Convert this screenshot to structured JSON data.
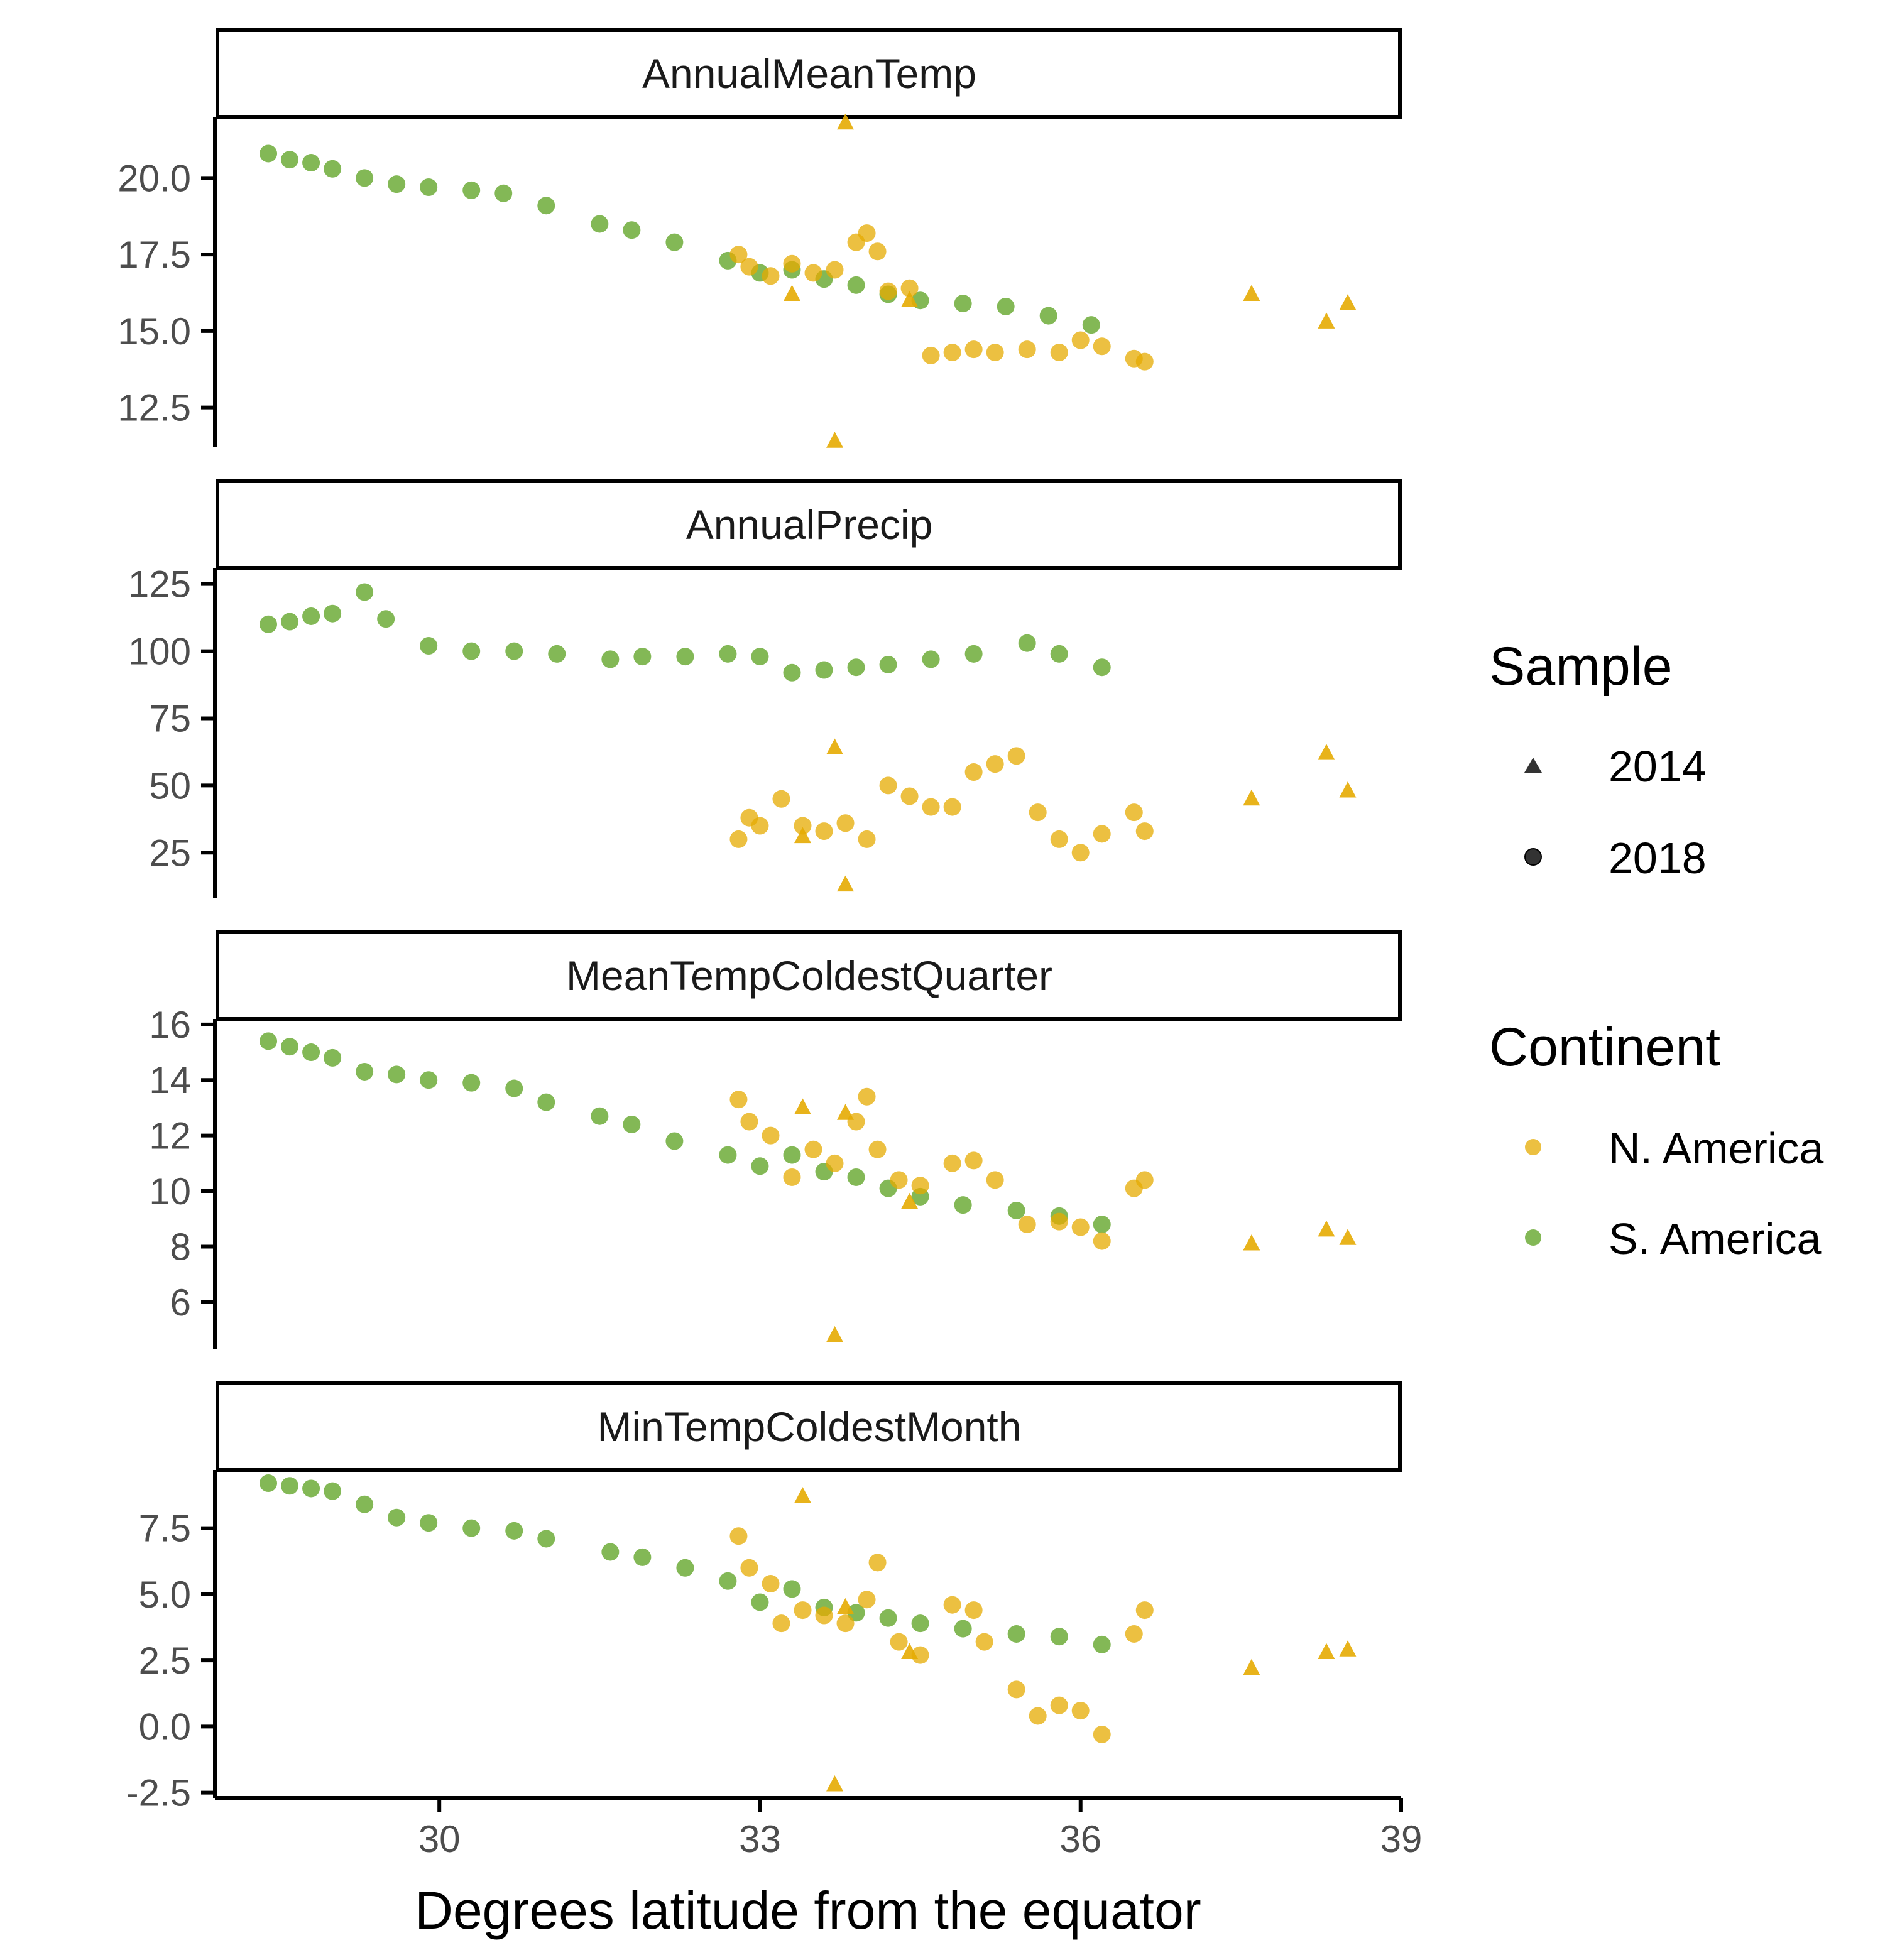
{
  "chart_data": {
    "type": "scatter",
    "xlabel": "Degrees latitude from the equator",
    "xlim": [
      27.9,
      39.0
    ],
    "x_ticks": [
      30,
      33,
      36,
      39
    ],
    "x_tick_labels": [
      "30",
      "33",
      "36",
      "39"
    ],
    "colors": {
      "N. America": "#E6AB02",
      "S. America": "#5AA01E"
    },
    "legend": {
      "placement": "right",
      "sample": {
        "title": "Sample",
        "items": [
          {
            "label": "2014",
            "shape": "triangle"
          },
          {
            "label": "2018",
            "shape": "circle"
          }
        ]
      },
      "continent": {
        "title": "Continent",
        "items": [
          {
            "label": "N. America",
            "color": "#E6AB02"
          },
          {
            "label": "S. America",
            "color": "#5AA01E"
          }
        ]
      }
    },
    "panels": [
      {
        "title": "AnnualMeanTemp",
        "ylim": [
          11.2,
          22.0
        ],
        "y_ticks": [
          12.5,
          15.0,
          17.5,
          20.0
        ],
        "y_tick_labels": [
          "12.5",
          "15.0",
          "17.5",
          "20.0"
        ],
        "series": [
          {
            "name": "S. America",
            "sample": "2018",
            "x": [
              28.4,
              28.6,
              28.8,
              29.0,
              29.3,
              29.6,
              29.9,
              30.3,
              30.6,
              31.0,
              31.5,
              31.8,
              32.2,
              32.7,
              33.0,
              33.3,
              33.6,
              33.9,
              34.2,
              34.5,
              34.9,
              35.3,
              35.7,
              36.1
            ],
            "y": [
              20.8,
              20.6,
              20.5,
              20.3,
              20.0,
              19.8,
              19.7,
              19.6,
              19.5,
              19.1,
              18.5,
              18.3,
              17.9,
              17.3,
              16.9,
              17.0,
              16.7,
              16.5,
              16.2,
              16.0,
              15.9,
              15.8,
              15.5,
              15.2
            ]
          },
          {
            "name": "N. America",
            "sample": "2018",
            "x": [
              32.8,
              32.9,
              33.1,
              33.3,
              33.5,
              33.7,
              33.9,
              34.0,
              34.1,
              34.2,
              34.4,
              34.6,
              34.8,
              35.0,
              35.2,
              35.5,
              35.8,
              36.0,
              36.2,
              36.5,
              36.6
            ],
            "y": [
              17.5,
              17.1,
              16.8,
              17.2,
              16.9,
              17.0,
              17.9,
              18.2,
              17.6,
              16.3,
              16.4,
              14.2,
              14.3,
              14.4,
              14.3,
              14.4,
              14.3,
              14.7,
              14.5,
              14.1,
              14.0
            ]
          },
          {
            "name": "N. America",
            "sample": "2014",
            "x": [
              33.3,
              33.7,
              33.8,
              34.4,
              37.6,
              38.3,
              38.5
            ],
            "y": [
              16.2,
              11.4,
              21.8,
              16.0,
              16.2,
              15.3,
              15.9
            ]
          }
        ]
      },
      {
        "title": "AnnualPrecip",
        "ylim": [
          8,
          131
        ],
        "y_ticks": [
          25,
          50,
          75,
          100,
          125
        ],
        "y_tick_labels": [
          "25",
          "50",
          "75",
          "100",
          "125"
        ],
        "series": [
          {
            "name": "S. America",
            "sample": "2018",
            "x": [
              28.4,
              28.6,
              28.8,
              29.0,
              29.3,
              29.5,
              29.9,
              30.3,
              30.7,
              31.1,
              31.6,
              31.9,
              32.3,
              32.7,
              33.0,
              33.3,
              33.6,
              33.9,
              34.2,
              34.6,
              35.0,
              35.5,
              35.8,
              36.2
            ],
            "y": [
              110,
              111,
              113,
              114,
              122,
              112,
              102,
              100,
              100,
              99,
              97,
              98,
              98,
              99,
              98,
              92,
              93,
              94,
              95,
              97,
              99,
              103,
              99,
              94
            ]
          },
          {
            "name": "N. America",
            "sample": "2018",
            "x": [
              32.8,
              32.9,
              33.0,
              33.2,
              33.4,
              33.6,
              33.8,
              34.0,
              34.2,
              34.4,
              34.6,
              34.8,
              35.0,
              35.2,
              35.4,
              35.6,
              35.8,
              36.0,
              36.2,
              36.5,
              36.6
            ],
            "y": [
              30,
              38,
              35,
              45,
              35,
              33,
              36,
              30,
              50,
              46,
              42,
              42,
              55,
              58,
              61,
              40,
              30,
              25,
              32,
              40,
              33
            ]
          },
          {
            "name": "N. America",
            "sample": "2014",
            "x": [
              33.4,
              33.7,
              33.8,
              37.6,
              38.3,
              38.5
            ],
            "y": [
              31,
              64,
              13,
              45,
              62,
              48
            ]
          }
        ]
      },
      {
        "title": "MeanTempColdestQuarter",
        "ylim": [
          4.3,
          16.2
        ],
        "y_ticks": [
          6,
          8,
          10,
          12,
          14,
          16
        ],
        "y_tick_labels": [
          "6",
          "8",
          "10",
          "12",
          "14",
          "16"
        ],
        "series": [
          {
            "name": "S. America",
            "sample": "2018",
            "x": [
              28.4,
              28.6,
              28.8,
              29.0,
              29.3,
              29.6,
              29.9,
              30.3,
              30.7,
              31.0,
              31.5,
              31.8,
              32.2,
              32.7,
              33.0,
              33.3,
              33.6,
              33.9,
              34.2,
              34.5,
              34.9,
              35.4,
              35.8,
              36.2
            ],
            "y": [
              15.4,
              15.2,
              15.0,
              14.8,
              14.3,
              14.2,
              14.0,
              13.9,
              13.7,
              13.2,
              12.7,
              12.4,
              11.8,
              11.3,
              10.9,
              11.3,
              10.7,
              10.5,
              10.1,
              9.8,
              9.5,
              9.3,
              9.1,
              8.8
            ]
          },
          {
            "name": "N. America",
            "sample": "2018",
            "x": [
              32.8,
              32.9,
              33.1,
              33.3,
              33.5,
              33.7,
              33.9,
              34.0,
              34.1,
              34.3,
              34.5,
              34.8,
              35.0,
              35.2,
              35.5,
              35.8,
              36.0,
              36.2,
              36.5,
              36.6
            ],
            "y": [
              13.3,
              12.5,
              12.0,
              10.5,
              11.5,
              11.0,
              12.5,
              13.4,
              11.5,
              10.4,
              10.2,
              11.0,
              11.1,
              10.4,
              8.8,
              8.9,
              8.7,
              8.2,
              10.1,
              10.4
            ]
          },
          {
            "name": "N. America",
            "sample": "2014",
            "x": [
              33.4,
              33.7,
              33.8,
              34.4,
              37.6,
              38.3,
              38.5
            ],
            "y": [
              13.0,
              4.8,
              12.8,
              9.6,
              8.1,
              8.6,
              8.3
            ]
          }
        ]
      },
      {
        "title": "MinTempColdestMonth",
        "ylim": [
          -2.7,
          9.7
        ],
        "y_ticks": [
          -2.5,
          0.0,
          2.5,
          5.0,
          7.5
        ],
        "y_tick_labels": [
          "-2.5",
          "0.0",
          "2.5",
          "5.0",
          "7.5"
        ],
        "series": [
          {
            "name": "S. America",
            "sample": "2018",
            "x": [
              28.4,
              28.6,
              28.8,
              29.0,
              29.3,
              29.6,
              29.9,
              30.3,
              30.7,
              31.0,
              31.6,
              31.9,
              32.3,
              32.7,
              33.0,
              33.3,
              33.6,
              33.9,
              34.2,
              34.5,
              34.9,
              35.4,
              35.8,
              36.2
            ],
            "y": [
              9.2,
              9.1,
              9.0,
              8.9,
              8.4,
              7.9,
              7.7,
              7.5,
              7.4,
              7.1,
              6.6,
              6.4,
              6.0,
              5.5,
              4.7,
              5.2,
              4.5,
              4.3,
              4.1,
              3.9,
              3.7,
              3.5,
              3.4,
              3.1
            ]
          },
          {
            "name": "N. America",
            "sample": "2018",
            "x": [
              32.8,
              32.9,
              33.1,
              33.2,
              33.4,
              33.6,
              33.8,
              34.0,
              34.1,
              34.3,
              34.5,
              34.8,
              35.0,
              35.1,
              35.4,
              35.6,
              35.8,
              36.0,
              36.2,
              36.5,
              36.6
            ],
            "y": [
              7.2,
              6.0,
              5.4,
              3.9,
              4.4,
              4.2,
              3.9,
              4.8,
              6.2,
              3.2,
              2.7,
              4.6,
              4.4,
              3.2,
              1.4,
              0.4,
              0.8,
              0.6,
              -0.3,
              3.5,
              4.4
            ]
          },
          {
            "name": "N. America",
            "sample": "2014",
            "x": [
              33.4,
              33.7,
              33.8,
              34.4,
              37.6,
              38.3,
              38.5
            ],
            "y": [
              8.7,
              -2.2,
              4.5,
              2.8,
              2.2,
              2.8,
              2.9
            ]
          }
        ]
      }
    ]
  }
}
